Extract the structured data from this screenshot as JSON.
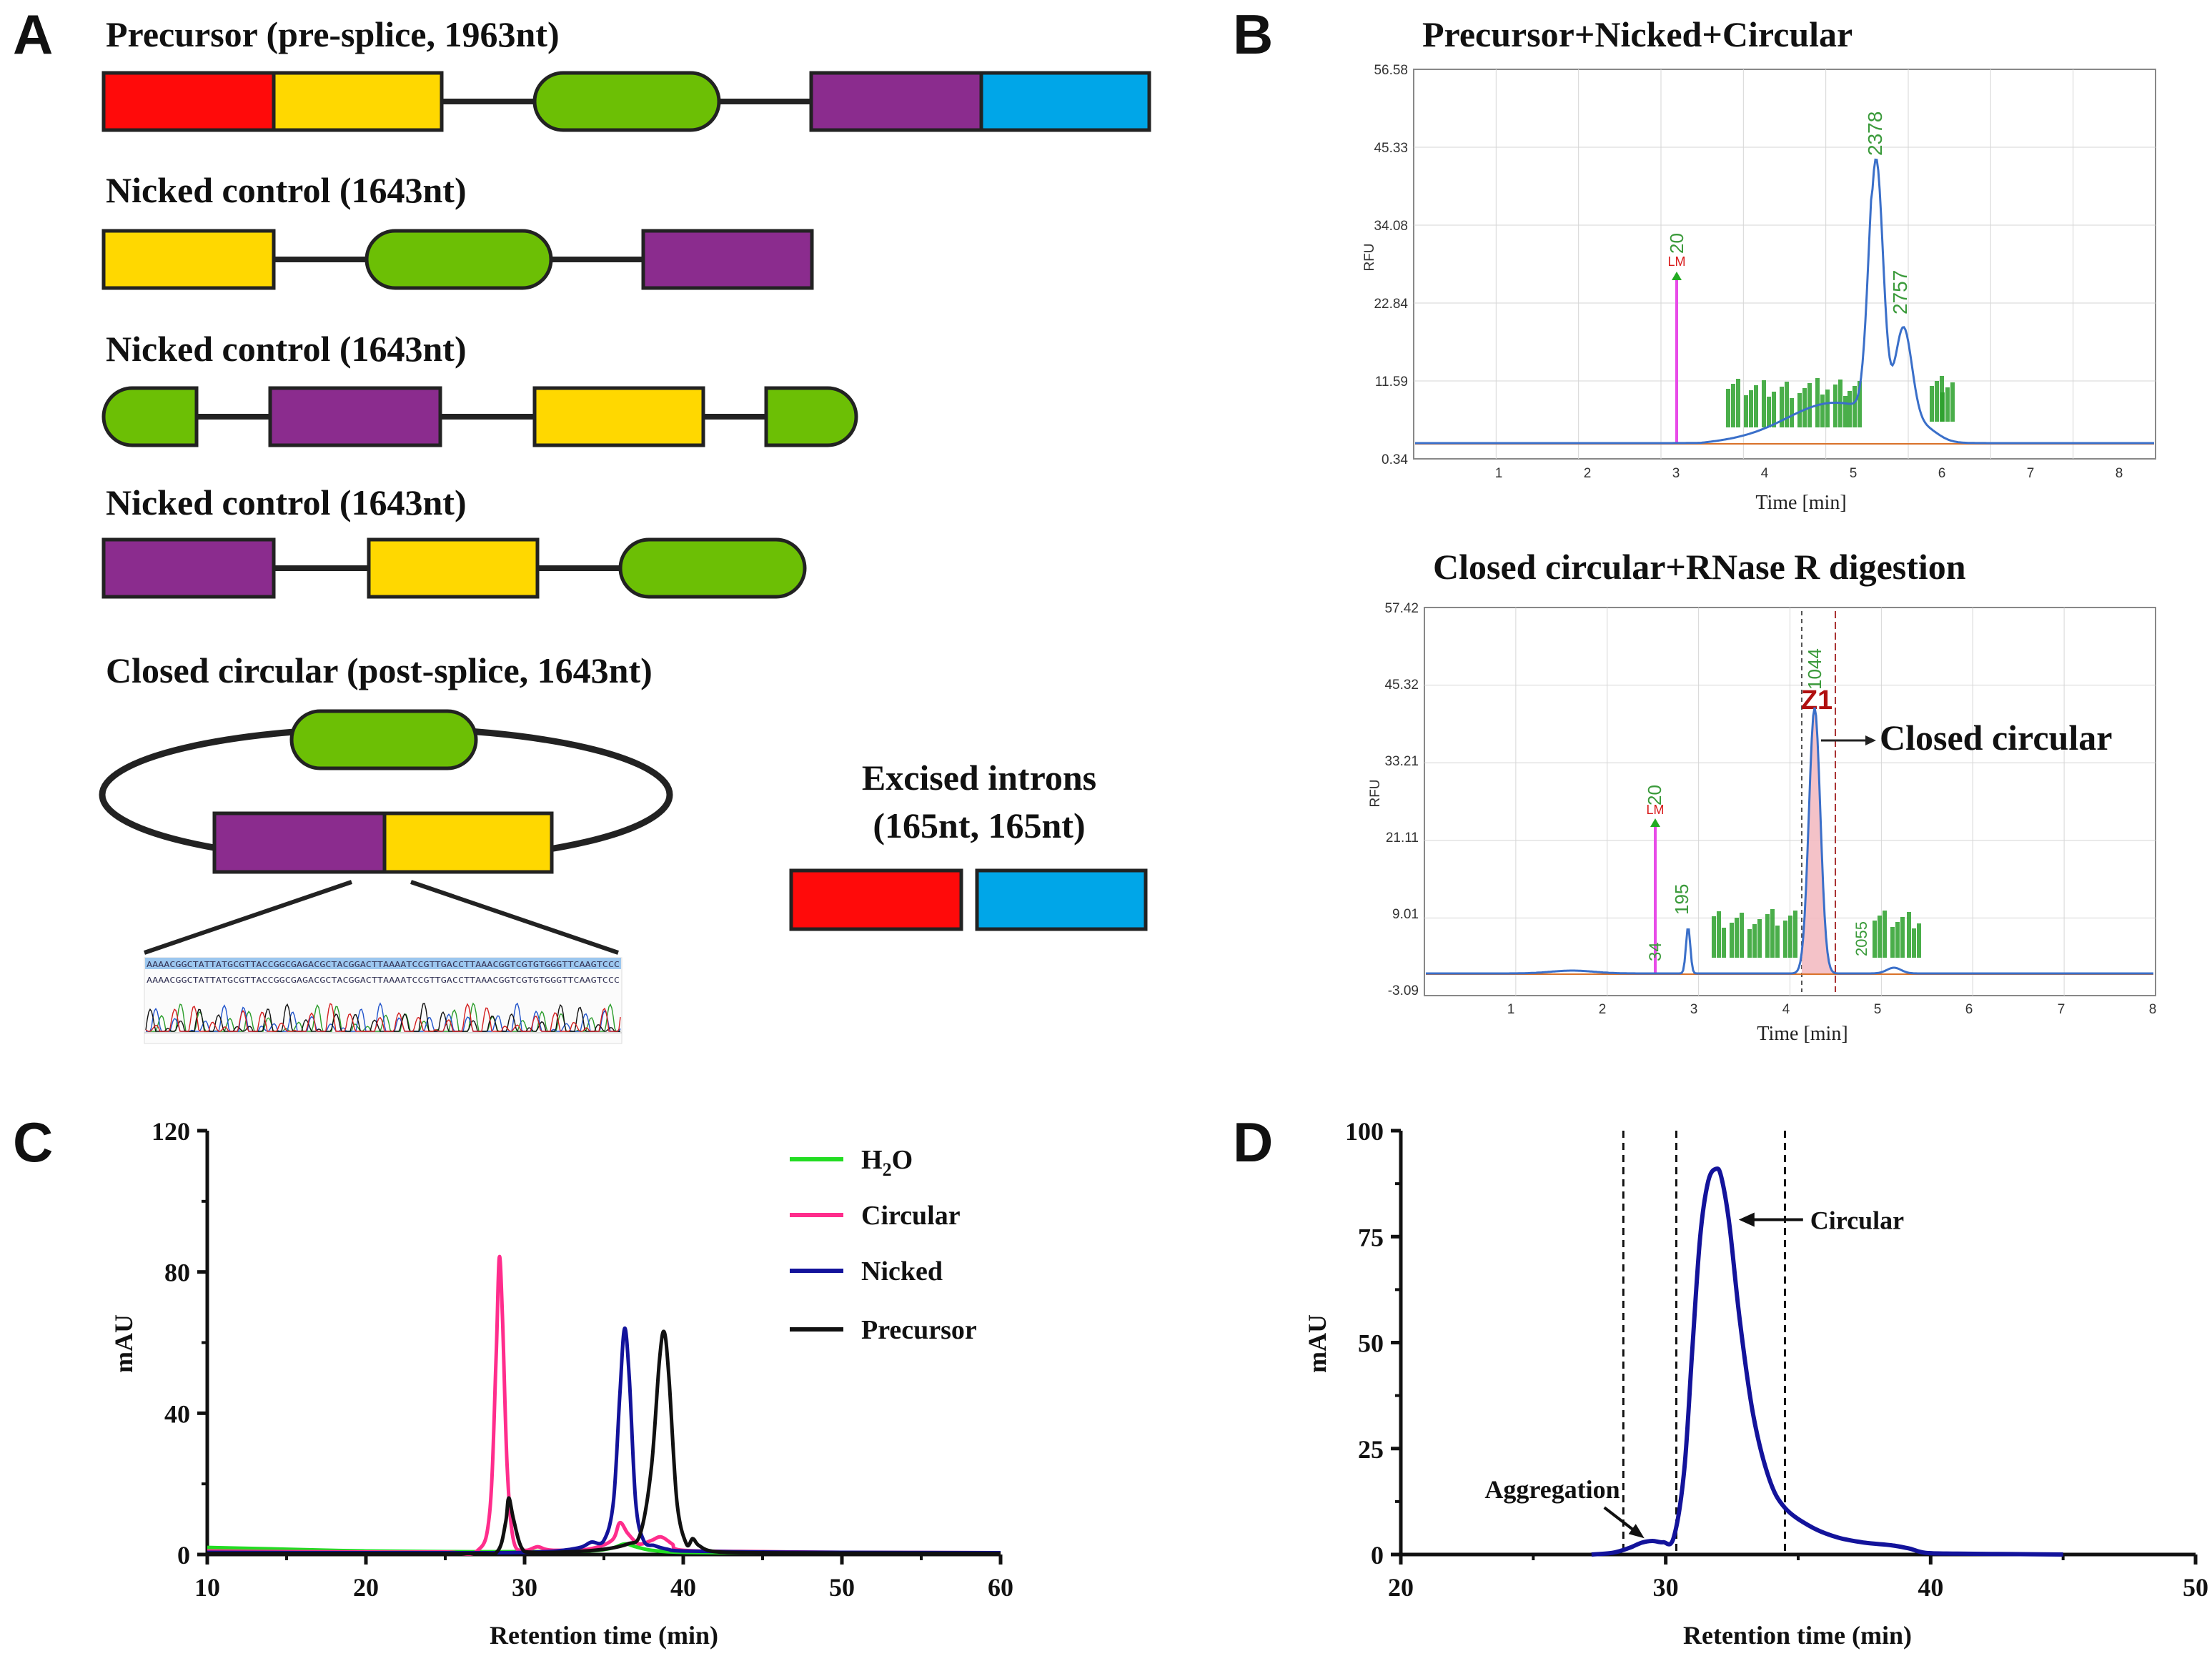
{
  "colors": {
    "red": "#ff0a0a",
    "yellow": "#ffd800",
    "green": "#6cbf05",
    "purple": "#8b2c8e",
    "blue": "#00a6e8",
    "h2o": "#22dd22",
    "circular": "#ff2d8c",
    "nicked": "#13139b",
    "precursor": "#111111"
  },
  "panel_a": {
    "label": "A",
    "constructs": [
      {
        "title": "Precursor (pre-splice, 1963nt)"
      },
      {
        "title": "Nicked control (1643nt)"
      },
      {
        "title": "Nicked control (1643nt)"
      },
      {
        "title": "Nicked control (1643nt)"
      },
      {
        "title": "Closed circular (post-splice, 1643nt)"
      }
    ],
    "excised_title_line1": "Excised introns",
    "excised_title_line2": "(165nt, 165nt)",
    "seq_line1": "AAAACGGCTATTATGCGTTACCGGCGAGACGCTACGGACTTAAAATCCGTTGACCTTAAACGGTCGTGTGGGTTCAAGTCCC",
    "seq_line2": "AAAACGGCTATTATGCGTTACCGGCGAGACGCTACGGACTTAAAATCCGTTGACCTTAAACGGTCGTGTGGGTTCAAGTCCC"
  },
  "panel_b": {
    "label": "B",
    "top": {
      "title": "Precursor+Nicked+Circular",
      "ylabel": "RFU",
      "xlabel": "Time [min]",
      "yticks": [
        "56.58",
        "45.33",
        "34.08",
        "22.84",
        "11.59",
        "0.34"
      ],
      "xticks": [
        "1",
        "2",
        "3",
        "4",
        "5",
        "6",
        "7",
        "8"
      ],
      "marker_lm": "LM",
      "marker_20": "20",
      "peak_2378": "2378",
      "peak_2757": "2757"
    },
    "bottom": {
      "title": "Closed circular+RNase R digestion",
      "ylabel": "RFU",
      "xlabel": "Time [min]",
      "yticks": [
        "57.42",
        "45.32",
        "33.21",
        "21.11",
        "9.01",
        "-3.09"
      ],
      "xticks": [
        "1",
        "2",
        "3",
        "4",
        "5",
        "6",
        "7",
        "8"
      ],
      "marker_lm": "LM",
      "marker_20": "20",
      "peak_34": "34",
      "peak_195": "195",
      "peak_1044": "1044",
      "peak_2055": "2055",
      "z1": "Z1",
      "annotation": "Closed circular"
    }
  },
  "chart_data": [
    {
      "panel": "C",
      "type": "line",
      "xlabel": "Retention time (min)",
      "ylabel": "mAU",
      "xlim": [
        10,
        60
      ],
      "ylim": [
        0,
        120
      ],
      "xticks": [
        "10",
        "20",
        "30",
        "40",
        "50",
        "60"
      ],
      "yticks": [
        "0",
        "40",
        "80",
        "120"
      ],
      "legend": [
        {
          "name": "H2O",
          "main": "H",
          "sub": "2",
          "tail": "O"
        },
        {
          "name": "Circular"
        },
        {
          "name": "Nicked"
        },
        {
          "name": "Precursor"
        }
      ],
      "series": [
        {
          "name": "H2O",
          "x": [
            10,
            12,
            15,
            20,
            25,
            30,
            34,
            35.5,
            36.3,
            37,
            38,
            40,
            45,
            50,
            60
          ],
          "y": [
            2,
            1.8,
            1.5,
            1.0,
            0.8,
            0.8,
            1.0,
            1.8,
            3.0,
            2.2,
            1.2,
            0.6,
            0.5,
            0.5,
            0.5
          ]
        },
        {
          "name": "Circular",
          "x": [
            10,
            15,
            20,
            25,
            27,
            27.8,
            28.2,
            28.4,
            28.6,
            28.9,
            29.3,
            30,
            30.8,
            31.3,
            32,
            34,
            35.5,
            36,
            36.5,
            37.2,
            38,
            38.6,
            39.3,
            40,
            45,
            50,
            60
          ],
          "y": [
            1.0,
            0.8,
            0.7,
            0.7,
            1.0,
            12,
            55,
            84,
            68,
            25,
            4,
            1.2,
            2.2,
            1.5,
            1.2,
            1.5,
            4,
            9,
            6,
            3,
            4,
            5,
            3,
            1.2,
            0.8,
            0.6,
            0.5
          ]
        },
        {
          "name": "Nicked",
          "x": [
            10,
            20,
            28,
            30,
            32,
            33.5,
            34.2,
            35,
            35.6,
            36.0,
            36.3,
            36.6,
            37.0,
            37.5,
            38.2,
            39,
            40,
            45,
            50,
            60
          ],
          "y": [
            0.6,
            0.5,
            0.5,
            0.6,
            1.0,
            2.0,
            3.5,
            4.0,
            15,
            45,
            64,
            50,
            15,
            4,
            2.5,
            1.5,
            1.0,
            0.7,
            0.6,
            0.5
          ]
        },
        {
          "name": "Precursor",
          "x": [
            10,
            20,
            27,
            28.3,
            28.8,
            29.0,
            29.3,
            29.8,
            30.5,
            33,
            35,
            36.5,
            37.3,
            38.0,
            38.5,
            38.8,
            39.1,
            39.6,
            40.2,
            40.6,
            41.0,
            42,
            45,
            50,
            60
          ],
          "y": [
            0.3,
            0.3,
            0.3,
            1.0,
            9,
            16,
            10,
            2,
            0.6,
            0.8,
            1.5,
            3,
            6,
            25,
            55,
            63,
            50,
            15,
            3,
            4.5,
            2.5,
            0.8,
            0.5,
            0.4,
            0.3
          ]
        }
      ]
    },
    {
      "panel": "D",
      "type": "line",
      "xlabel": "Retention time (min)",
      "ylabel": "mAU",
      "xlim": [
        20,
        50
      ],
      "ylim": [
        0,
        100
      ],
      "xticks": [
        "20",
        "30",
        "40",
        "50"
      ],
      "yticks": [
        "0",
        "25",
        "50",
        "75",
        "100"
      ],
      "vlines": [
        28.4,
        30.4,
        34.5
      ],
      "annotations": [
        {
          "text": "Circular",
          "x": 32.0,
          "y": 91
        },
        {
          "text": "Aggregation",
          "x": 29.3,
          "y": 3.5
        }
      ],
      "series": [
        {
          "name": "Circular",
          "x": [
            27.2,
            28.0,
            28.6,
            29.1,
            29.5,
            29.9,
            30.3,
            30.7,
            31.0,
            31.3,
            31.6,
            31.9,
            32.1,
            32.4,
            32.8,
            33.3,
            33.9,
            34.5,
            35.5,
            36.5,
            37.5,
            38.5,
            39.2,
            39.8,
            41,
            43,
            45
          ],
          "y": [
            0.0,
            0.4,
            1.5,
            2.8,
            3.2,
            2.9,
            4.0,
            20,
            48,
            75,
            88,
            91,
            89,
            78,
            55,
            33,
            18,
            11,
            6.5,
            4.0,
            2.8,
            2.2,
            1.4,
            0.4,
            0.2,
            0.1,
            0.0
          ]
        }
      ]
    }
  ]
}
